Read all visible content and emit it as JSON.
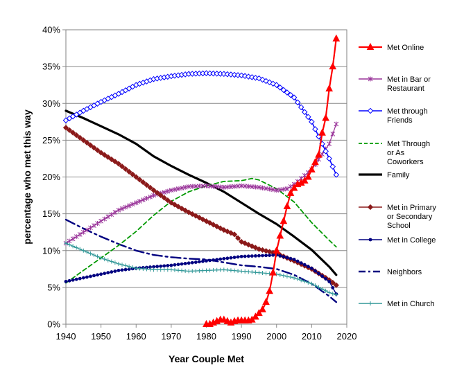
{
  "chart_data": {
    "type": "line",
    "title": "",
    "xlabel": "Year Couple Met",
    "ylabel": "percentage who met this way",
    "xlim": [
      1940,
      2020
    ],
    "ylim": [
      0,
      40
    ],
    "x_ticks": [
      1940,
      1950,
      1960,
      1970,
      1980,
      1990,
      2000,
      2010,
      2020
    ],
    "y_ticks": [
      0,
      5,
      10,
      15,
      20,
      25,
      30,
      35,
      40
    ],
    "y_tick_labels": [
      "0%",
      "5%",
      "10%",
      "15%",
      "20%",
      "25%",
      "30%",
      "35%",
      "40%"
    ],
    "grid": "horizontal",
    "legend_position": "right",
    "series": [
      {
        "name": "Met Online",
        "legend_lines": [
          "Met Online"
        ],
        "color": "#ff0000",
        "style": "solid",
        "width": 2.2,
        "marker": "triangle",
        "x": [
          1980,
          1981,
          1982,
          1983,
          1984,
          1985,
          1986,
          1987,
          1988,
          1989,
          1990,
          1991,
          1992,
          1993,
          1994,
          1995,
          1996,
          1997,
          1998,
          1999,
          2000,
          2001,
          2002,
          2003,
          2004,
          2005,
          2006,
          2007,
          2008,
          2009,
          2010,
          2011,
          2012,
          2013,
          2014,
          2015,
          2016,
          2017
        ],
        "y": [
          0,
          0,
          0.2,
          0.4,
          0.6,
          0.6,
          0.4,
          0.2,
          0.4,
          0.5,
          0.5,
          0.5,
          0.5,
          0.6,
          1.0,
          1.5,
          2.0,
          3.0,
          4.5,
          7.0,
          10.0,
          12.0,
          14.0,
          16.0,
          17.8,
          18.5,
          19.0,
          19.2,
          19.5,
          20.0,
          21.0,
          22.0,
          23.0,
          26.0,
          28.0,
          32.0,
          35.0,
          38.8
        ]
      },
      {
        "name": "Met in Bar or Restaurant",
        "legend_lines": [
          "Met in Bar or",
          "Restaurant"
        ],
        "color": "#993399",
        "style": "solid",
        "width": 1.2,
        "marker": "star",
        "x": [
          1940,
          1945,
          1950,
          1955,
          1960,
          1965,
          1970,
          1975,
          1980,
          1985,
          1990,
          1995,
          2000,
          2003,
          2005,
          2010,
          2015,
          2017
        ],
        "y": [
          11.0,
          12.5,
          14.0,
          15.5,
          16.5,
          17.5,
          18.2,
          18.7,
          18.8,
          18.6,
          18.8,
          18.6,
          18.2,
          18.4,
          19.0,
          21.0,
          24.5,
          27.2
        ]
      },
      {
        "name": "Met through Friends",
        "legend_lines": [
          "Met through",
          "Friends"
        ],
        "color": "#0000ff",
        "style": "solid",
        "width": 1.6,
        "marker": "diamond",
        "x": [
          1940,
          1945,
          1950,
          1955,
          1960,
          1965,
          1970,
          1975,
          1980,
          1985,
          1990,
          1995,
          2000,
          2005,
          2010,
          2013,
          2015,
          2017
        ],
        "y": [
          27.7,
          29.0,
          30.2,
          31.3,
          32.5,
          33.3,
          33.7,
          34.0,
          34.1,
          34.0,
          33.8,
          33.4,
          32.5,
          30.8,
          27.5,
          24.5,
          22.5,
          20.3
        ]
      },
      {
        "name": "Met Through or As Coworkers",
        "legend_lines": [
          "Met Through",
          "or As",
          "Coworkers"
        ],
        "color": "#009900",
        "style": "dashed",
        "width": 1.8,
        "marker": "none",
        "x": [
          1940,
          1945,
          1950,
          1955,
          1960,
          1965,
          1970,
          1975,
          1980,
          1985,
          1990,
          1993,
          1995,
          2000,
          2005,
          2010,
          2015,
          2017
        ],
        "y": [
          5.6,
          7.3,
          9.0,
          10.7,
          12.6,
          14.8,
          16.7,
          18.0,
          18.8,
          19.4,
          19.5,
          19.8,
          19.6,
          18.4,
          16.6,
          13.8,
          11.4,
          10.5
        ]
      },
      {
        "name": "Family",
        "legend_lines": [
          "Family"
        ],
        "color": "#000000",
        "style": "solid",
        "width": 3.2,
        "marker": "none",
        "x": [
          1940,
          1945,
          1950,
          1955,
          1960,
          1965,
          1970,
          1975,
          1980,
          1985,
          1990,
          1995,
          2000,
          2005,
          2010,
          2015,
          2017
        ],
        "y": [
          29.0,
          28.0,
          26.9,
          25.8,
          24.5,
          22.8,
          21.5,
          20.3,
          19.2,
          18.0,
          16.5,
          15.0,
          13.6,
          11.9,
          10.1,
          7.8,
          6.7
        ]
      },
      {
        "name": "Met in Primary or Secondary School",
        "legend_lines": [
          "Met in Primary",
          "or Secondary",
          "School"
        ],
        "color": "#8b1a1a",
        "style": "solid",
        "width": 1.6,
        "marker": "diamond-filled",
        "x": [
          1940,
          1945,
          1950,
          1955,
          1960,
          1965,
          1970,
          1975,
          1980,
          1985,
          1988,
          1990,
          1995,
          2000,
          2005,
          2010,
          2015,
          2017
        ],
        "y": [
          26.7,
          25.0,
          23.3,
          21.8,
          20.0,
          18.2,
          16.5,
          15.2,
          14.0,
          12.8,
          12.2,
          11.2,
          10.2,
          9.6,
          8.6,
          7.5,
          6.0,
          5.3
        ]
      },
      {
        "name": "Met in College",
        "legend_lines": [
          "Met in College"
        ],
        "color": "#000080",
        "style": "solid",
        "width": 1.4,
        "marker": "circle",
        "x": [
          1940,
          1945,
          1950,
          1955,
          1960,
          1965,
          1970,
          1975,
          1980,
          1985,
          1990,
          1995,
          2000,
          2005,
          2010,
          2015,
          2017
        ],
        "y": [
          5.8,
          6.3,
          6.8,
          7.3,
          7.6,
          7.8,
          8.0,
          8.3,
          8.6,
          8.9,
          9.2,
          9.3,
          9.4,
          8.8,
          7.6,
          5.8,
          4.1
        ]
      },
      {
        "name": "Neighbors",
        "legend_lines": [
          "Neighbors"
        ],
        "color": "#000080",
        "style": "dashdot",
        "width": 2.4,
        "marker": "none",
        "x": [
          1940,
          1945,
          1950,
          1955,
          1960,
          1965,
          1970,
          1975,
          1980,
          1985,
          1990,
          1995,
          2000,
          2005,
          2010,
          2015,
          2017
        ],
        "y": [
          14.2,
          13.0,
          11.9,
          10.9,
          10.0,
          9.4,
          9.1,
          8.9,
          8.8,
          8.4,
          8.0,
          7.8,
          7.5,
          6.7,
          5.5,
          3.8,
          3.0
        ]
      },
      {
        "name": "Met in Church",
        "legend_lines": [
          "Met in Church"
        ],
        "color": "#339999",
        "style": "solid",
        "width": 1.2,
        "marker": "plus",
        "x": [
          1940,
          1945,
          1950,
          1955,
          1960,
          1965,
          1970,
          1975,
          1980,
          1985,
          1990,
          1995,
          2000,
          2005,
          2010,
          2015,
          2017
        ],
        "y": [
          11.0,
          10.0,
          9.0,
          8.2,
          7.6,
          7.4,
          7.4,
          7.2,
          7.3,
          7.4,
          7.2,
          7.0,
          6.8,
          6.3,
          5.5,
          4.3,
          4.0
        ]
      }
    ]
  }
}
